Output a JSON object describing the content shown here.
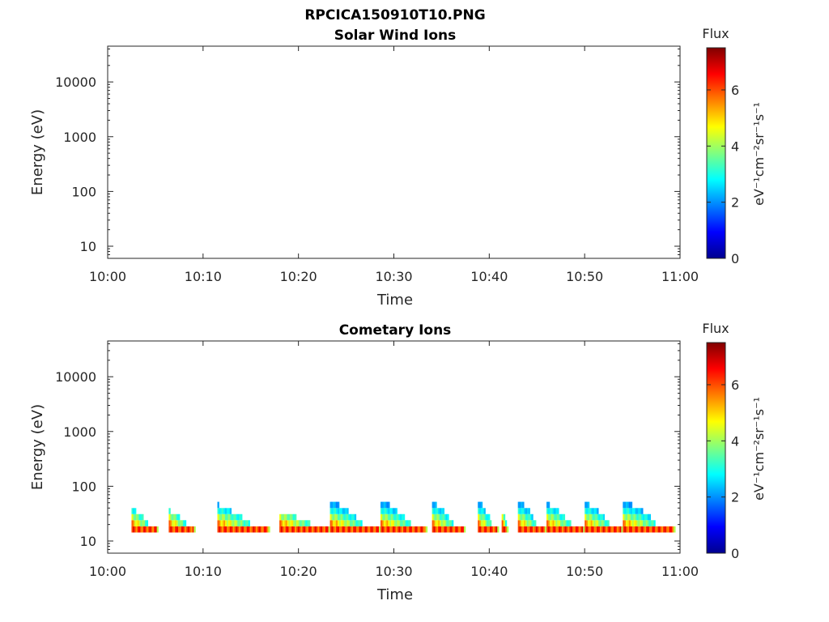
{
  "figure": {
    "filename_title": "RPCICA150910T10.PNG"
  },
  "colorbar": {
    "label": "Flux",
    "unit_label": "eV⁻¹cm⁻²sr⁻¹s⁻¹",
    "range": [
      0,
      7.5
    ],
    "ticks": [
      "0",
      "2",
      "4",
      "6"
    ]
  },
  "chart_data": [
    {
      "type": "heatmap",
      "title": "Solar Wind Ions",
      "xlabel": "Time",
      "ylabel": "Energy (eV)",
      "x_ticks": [
        "10:00",
        "10:10",
        "10:20",
        "10:30",
        "10:40",
        "10:50",
        "11:00"
      ],
      "y_ticks": [
        "10",
        "100",
        "1000",
        "10000"
      ],
      "x_range": [
        "10:00",
        "11:00"
      ],
      "y_scale": "log",
      "y_range": [
        6,
        45000
      ],
      "bursts": []
    },
    {
      "type": "heatmap",
      "title": "Cometary Ions",
      "xlabel": "Time",
      "ylabel": "Energy (eV)",
      "x_ticks": [
        "10:00",
        "10:10",
        "10:20",
        "10:30",
        "10:40",
        "10:50",
        "11:00"
      ],
      "y_ticks": [
        "10",
        "100",
        "1000",
        "10000"
      ],
      "x_range": [
        "10:00",
        "11:00"
      ],
      "y_scale": "log",
      "y_range": [
        6,
        45000
      ],
      "colorscale": "jet",
      "bursts": [
        {
          "start_min": 2.5,
          "end_min": 5.3,
          "peak_energy_eV": 35
        },
        {
          "start_min": 6.4,
          "end_min": 9.2,
          "peak_energy_eV": 32
        },
        {
          "start_min": 11.5,
          "end_min": 17.0,
          "peak_energy_eV": 40
        },
        {
          "start_min": 18.0,
          "end_min": 23.3,
          "peak_energy_eV": 30
        },
        {
          "start_min": 23.3,
          "end_min": 28.6,
          "peak_energy_eV": 48
        },
        {
          "start_min": 28.6,
          "end_min": 33.5,
          "peak_energy_eV": 48
        },
        {
          "start_min": 34.0,
          "end_min": 37.5,
          "peak_energy_eV": 45
        },
        {
          "start_min": 38.8,
          "end_min": 41.0,
          "peak_energy_eV": 48
        },
        {
          "start_min": 41.3,
          "end_min": 42.0,
          "peak_energy_eV": 30
        },
        {
          "start_min": 43.0,
          "end_min": 46.0,
          "peak_energy_eV": 50
        },
        {
          "start_min": 46.0,
          "end_min": 50.0,
          "peak_energy_eV": 42
        },
        {
          "start_min": 50.0,
          "end_min": 54.0,
          "peak_energy_eV": 45
        },
        {
          "start_min": 54.0,
          "end_min": 59.5,
          "peak_energy_eV": 48
        }
      ]
    }
  ]
}
